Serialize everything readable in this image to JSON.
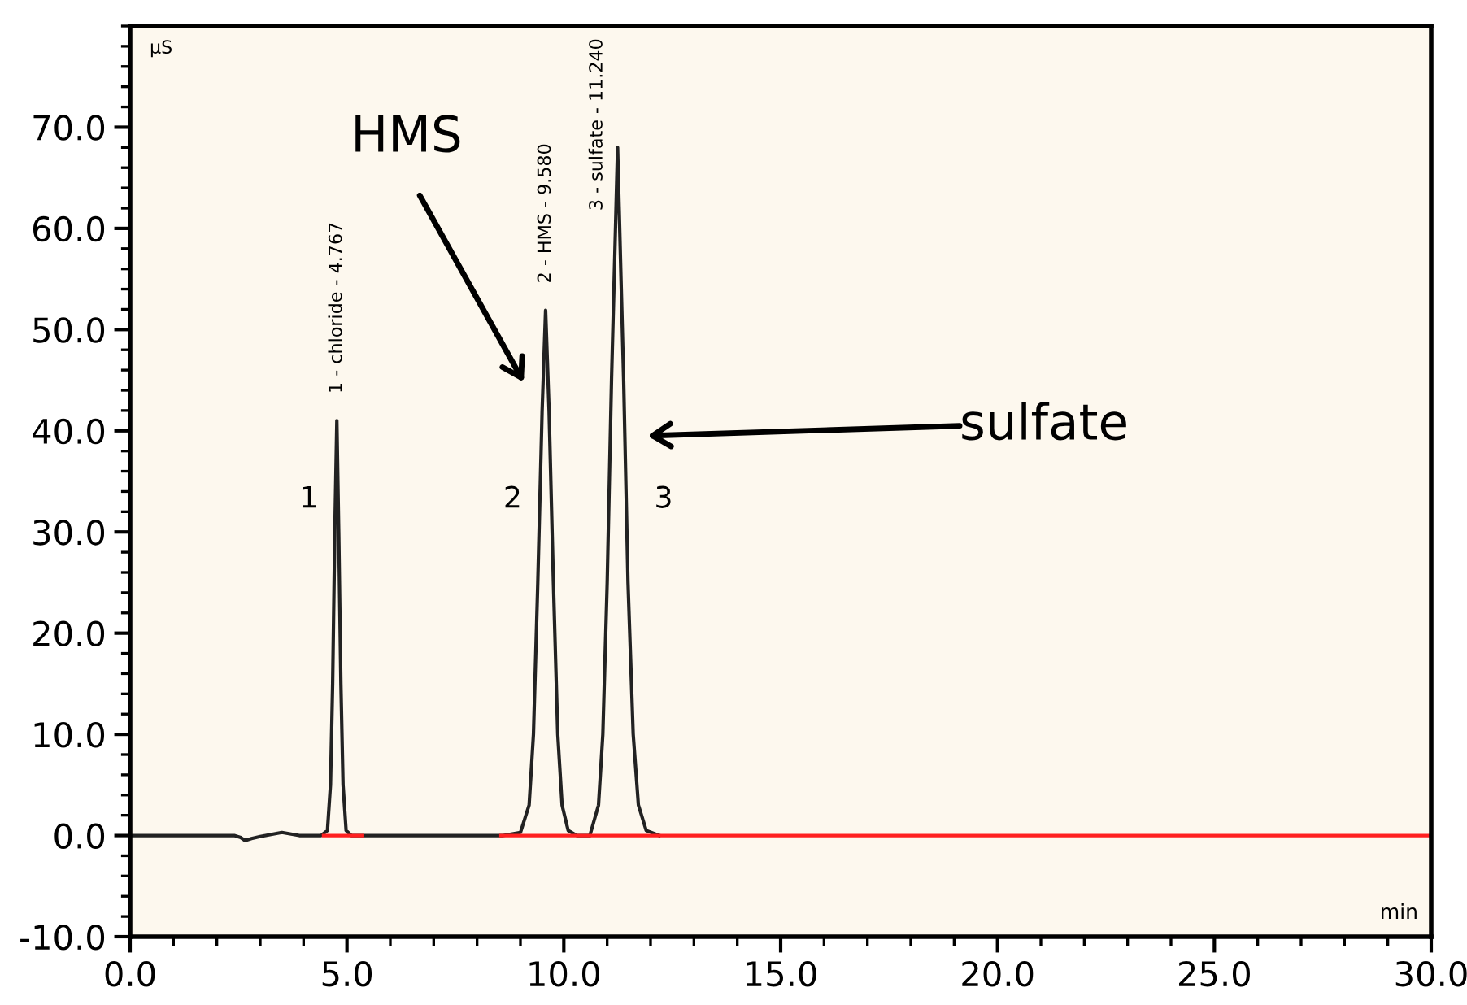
{
  "chart_data": {
    "type": "line",
    "xlabel": "min",
    "ylabel": "µS",
    "xlim": [
      0,
      30
    ],
    "ylim": [
      -10,
      80
    ],
    "xticks": [
      {
        "value": 0,
        "label": "0.0"
      },
      {
        "value": 5,
        "label": "5.0"
      },
      {
        "value": 10,
        "label": "10.0"
      },
      {
        "value": 15,
        "label": "15.0"
      },
      {
        "value": 20,
        "label": "20.0"
      },
      {
        "value": 25,
        "label": "25.0"
      },
      {
        "value": 30,
        "label": "30.0"
      }
    ],
    "yticks": [
      {
        "value": -10,
        "label": "-10.0"
      },
      {
        "value": 0,
        "label": "0.0"
      },
      {
        "value": 10,
        "label": "10.0"
      },
      {
        "value": 20,
        "label": "20.0"
      },
      {
        "value": 30,
        "label": "30.0"
      },
      {
        "value": 40,
        "label": "40.0"
      },
      {
        "value": 50,
        "label": "50.0"
      },
      {
        "value": 60,
        "label": "60.0"
      },
      {
        "value": 70,
        "label": "70.0"
      }
    ],
    "grid": false,
    "series": [
      {
        "color": "#222222",
        "x": [
          0,
          2.4,
          2.55,
          2.65,
          2.8,
          3.0,
          3.5,
          3.9,
          4.4,
          4.55,
          4.62,
          4.67,
          4.72,
          4.767,
          4.81,
          4.86,
          4.91,
          4.98,
          5.1,
          8.6,
          9.0,
          9.2,
          9.3,
          9.4,
          9.5,
          9.58,
          9.66,
          9.76,
          9.86,
          9.96,
          10.1,
          10.3,
          10.6,
          10.8,
          10.9,
          11.0,
          11.1,
          11.24,
          11.38,
          11.48,
          11.6,
          11.72,
          11.9,
          12.2
        ],
        "values": [
          0,
          0,
          -0.2,
          -0.5,
          -0.3,
          -0.1,
          0.3,
          0,
          0,
          0.5,
          5,
          15,
          30,
          41,
          30,
          15,
          5,
          0.5,
          0,
          0,
          0.3,
          3,
          10,
          25,
          42,
          51.9,
          42,
          25,
          10,
          3,
          0.5,
          0,
          0,
          3,
          10,
          25,
          45,
          68,
          45,
          25,
          10,
          3,
          0.5,
          0
        ]
      },
      {
        "color": "#ff2020",
        "x": [
          4.46,
          5.36
        ],
        "values": [
          0,
          0
        ]
      },
      {
        "color": "#ff2020",
        "x": [
          8.55,
          30
        ],
        "values": [
          0,
          0
        ]
      }
    ],
    "annotations": [
      {
        "text": "1 - chloride - 4.767",
        "x": 4.767,
        "y": 41
      },
      {
        "text": "2 - HMS - 9.580",
        "x": 9.58,
        "y": 51.9
      },
      {
        "text": "3 - sulfate - 11.240",
        "x": 11.24,
        "y": 68
      },
      "1",
      "2",
      "3",
      "HMS",
      "sulfate"
    ]
  }
}
